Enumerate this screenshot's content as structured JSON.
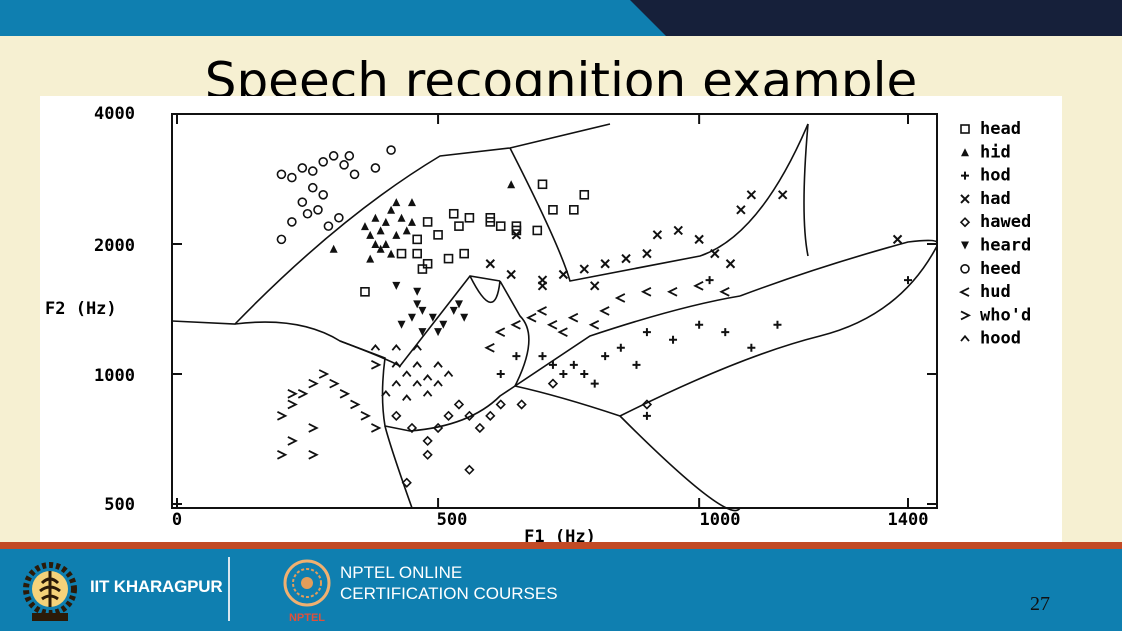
{
  "slide": {
    "title": "Speech recognition example",
    "page_number": "27"
  },
  "footer": {
    "iit_name": "IIT KHARAGPUR",
    "nptel_line1": "NPTEL ONLINE",
    "nptel_line2": "CERTIFICATION COURSES",
    "nptel_badge": "NPTEL"
  },
  "chart_data": {
    "type": "scatter",
    "xlabel": "F1 (Hz)",
    "ylabel": "F2 (Hz)",
    "x_ticks": [
      "0",
      "500",
      "1000",
      "1400"
    ],
    "y_ticks": [
      "500",
      "1000",
      "2000",
      "4000"
    ],
    "y_scale": "log",
    "xlim": [
      0,
      1400
    ],
    "ylim": [
      500,
      4000
    ],
    "legend_position": "right",
    "series": [
      {
        "name": "head",
        "marker": "square",
        "points": [
          [
            480,
            2250
          ],
          [
            460,
            1900
          ],
          [
            500,
            2100
          ],
          [
            530,
            2350
          ],
          [
            560,
            2300
          ],
          [
            600,
            2300
          ],
          [
            620,
            2200
          ],
          [
            650,
            2200
          ],
          [
            690,
            2150
          ],
          [
            720,
            2400
          ],
          [
            760,
            2400
          ],
          [
            780,
            2600
          ],
          [
            700,
            2750
          ],
          [
            650,
            2150
          ],
          [
            540,
            2200
          ],
          [
            550,
            1900
          ],
          [
            520,
            1850
          ],
          [
            480,
            1800
          ],
          [
            470,
            1750
          ],
          [
            430,
            1900
          ],
          [
            360,
            1550
          ],
          [
            600,
            2250
          ],
          [
            460,
            2050
          ]
        ]
      },
      {
        "name": "hid",
        "marker": "triangle",
        "points": [
          [
            360,
            2200
          ],
          [
            370,
            2100
          ],
          [
            380,
            2300
          ],
          [
            390,
            2150
          ],
          [
            400,
            2250
          ],
          [
            410,
            2400
          ],
          [
            420,
            2100
          ],
          [
            430,
            2300
          ],
          [
            440,
            2150
          ],
          [
            450,
            2500
          ],
          [
            380,
            2000
          ],
          [
            390,
            1950
          ],
          [
            400,
            2000
          ],
          [
            410,
            1900
          ],
          [
            370,
            1850
          ],
          [
            420,
            2500
          ],
          [
            300,
            1950
          ],
          [
            640,
            2750
          ],
          [
            450,
            2250
          ]
        ]
      },
      {
        "name": "hod",
        "marker": "plus",
        "points": [
          [
            700,
            1100
          ],
          [
            720,
            1050
          ],
          [
            740,
            1000
          ],
          [
            760,
            1050
          ],
          [
            780,
            1000
          ],
          [
            800,
            950
          ],
          [
            820,
            1100
          ],
          [
            850,
            1150
          ],
          [
            900,
            1250
          ],
          [
            950,
            1200
          ],
          [
            1000,
            1300
          ],
          [
            1050,
            1250
          ],
          [
            1100,
            1150
          ],
          [
            1150,
            1300
          ],
          [
            1400,
            1650
          ],
          [
            1020,
            1650
          ],
          [
            880,
            1050
          ],
          [
            900,
            800
          ],
          [
            650,
            1100
          ],
          [
            620,
            1000
          ]
        ]
      },
      {
        "name": "had",
        "marker": "x",
        "points": [
          [
            600,
            1800
          ],
          [
            640,
            1700
          ],
          [
            700,
            1650
          ],
          [
            740,
            1700
          ],
          [
            780,
            1750
          ],
          [
            820,
            1800
          ],
          [
            860,
            1850
          ],
          [
            900,
            1900
          ],
          [
            920,
            2100
          ],
          [
            960,
            2150
          ],
          [
            1000,
            2050
          ],
          [
            1030,
            1900
          ],
          [
            1060,
            1800
          ],
          [
            1100,
            2600
          ],
          [
            1160,
            2600
          ],
          [
            1380,
            2050
          ],
          [
            1080,
            2400
          ],
          [
            650,
            2100
          ],
          [
            700,
            1600
          ],
          [
            800,
            1600
          ]
        ]
      },
      {
        "name": "hawed",
        "marker": "diamond",
        "points": [
          [
            420,
            800
          ],
          [
            450,
            750
          ],
          [
            480,
            700
          ],
          [
            500,
            750
          ],
          [
            520,
            800
          ],
          [
            540,
            850
          ],
          [
            560,
            800
          ],
          [
            580,
            750
          ],
          [
            600,
            800
          ],
          [
            620,
            850
          ],
          [
            660,
            850
          ],
          [
            720,
            950
          ],
          [
            900,
            850
          ],
          [
            480,
            650
          ],
          [
            560,
            600
          ],
          [
            440,
            560
          ]
        ]
      },
      {
        "name": "heard",
        "marker": "triangle-down",
        "points": [
          [
            430,
            1300
          ],
          [
            450,
            1350
          ],
          [
            470,
            1400
          ],
          [
            490,
            1350
          ],
          [
            510,
            1300
          ],
          [
            530,
            1400
          ],
          [
            550,
            1350
          ],
          [
            470,
            1250
          ],
          [
            500,
            1250
          ],
          [
            460,
            1450
          ],
          [
            420,
            1600
          ],
          [
            540,
            1450
          ],
          [
            460,
            1550
          ]
        ]
      },
      {
        "name": "heed",
        "marker": "circle",
        "points": [
          [
            200,
            2900
          ],
          [
            220,
            2850
          ],
          [
            240,
            3000
          ],
          [
            260,
            2950
          ],
          [
            280,
            3100
          ],
          [
            300,
            3200
          ],
          [
            320,
            3050
          ],
          [
            340,
            2900
          ],
          [
            260,
            2700
          ],
          [
            280,
            2600
          ],
          [
            240,
            2500
          ],
          [
            250,
            2350
          ],
          [
            270,
            2400
          ],
          [
            290,
            2200
          ],
          [
            310,
            2300
          ],
          [
            220,
            2250
          ],
          [
            200,
            2050
          ],
          [
            330,
            3200
          ],
          [
            380,
            3000
          ],
          [
            410,
            3300
          ]
        ]
      },
      {
        "name": "hud",
        "marker": "less",
        "points": [
          [
            620,
            1250
          ],
          [
            650,
            1300
          ],
          [
            680,
            1350
          ],
          [
            700,
            1400
          ],
          [
            720,
            1300
          ],
          [
            740,
            1250
          ],
          [
            760,
            1350
          ],
          [
            800,
            1300
          ],
          [
            820,
            1400
          ],
          [
            850,
            1500
          ],
          [
            900,
            1550
          ],
          [
            950,
            1550
          ],
          [
            1000,
            1600
          ],
          [
            1050,
            1550
          ],
          [
            600,
            1150
          ]
        ]
      },
      {
        "name": "who'd",
        "marker": "greater",
        "points": [
          [
            200,
            800
          ],
          [
            220,
            850
          ],
          [
            240,
            900
          ],
          [
            260,
            950
          ],
          [
            280,
            1000
          ],
          [
            300,
            950
          ],
          [
            320,
            900
          ],
          [
            340,
            850
          ],
          [
            360,
            800
          ],
          [
            380,
            750
          ],
          [
            260,
            750
          ],
          [
            220,
            700
          ],
          [
            200,
            650
          ],
          [
            260,
            650
          ],
          [
            380,
            1050
          ],
          [
            220,
            900
          ]
        ]
      },
      {
        "name": "hood",
        "marker": "caret",
        "points": [
          [
            400,
            900
          ],
          [
            420,
            950
          ],
          [
            440,
            1000
          ],
          [
            460,
            950
          ],
          [
            480,
            900
          ],
          [
            500,
            950
          ],
          [
            420,
            1050
          ],
          [
            460,
            1050
          ],
          [
            500,
            1050
          ],
          [
            440,
            880
          ],
          [
            480,
            980
          ],
          [
            520,
            1000
          ],
          [
            380,
            1150
          ],
          [
            420,
            1150
          ],
          [
            460,
            1150
          ]
        ]
      }
    ]
  }
}
